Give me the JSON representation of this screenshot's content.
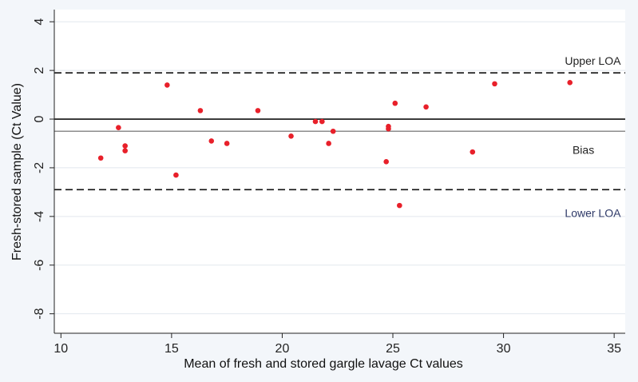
{
  "chart_data": {
    "type": "scatter",
    "xlabel": "Mean of fresh and stored gargle lavage Ct values",
    "ylabel": "Fresh-stored sample (Ct Value)",
    "xlim": [
      9.7,
      35.5
    ],
    "ylim": [
      -8.8,
      4.5
    ],
    "xticks": [
      10,
      15,
      20,
      25,
      30,
      35
    ],
    "yticks": [
      4,
      2,
      0,
      -2,
      -4,
      -6,
      -8
    ],
    "grid": true,
    "point_color": "#e8202a",
    "series": [
      {
        "x": [
          11.8,
          12.6,
          12.9,
          12.9,
          14.8,
          15.2,
          16.3,
          16.8,
          17.5,
          18.9,
          20.4,
          21.5,
          21.8,
          22.1,
          22.3,
          24.7,
          24.8,
          24.8,
          25.1,
          25.3,
          26.5,
          28.6,
          29.6,
          33.0
        ],
        "y": [
          -1.6,
          -0.35,
          -1.1,
          -1.3,
          1.4,
          -2.3,
          0.35,
          -0.9,
          -1.0,
          0.35,
          -0.7,
          -0.1,
          -0.1,
          -1.0,
          -0.5,
          -1.75,
          -0.4,
          -0.3,
          0.65,
          -3.55,
          0.5,
          -1.35,
          1.45,
          1.5
        ]
      }
    ],
    "lines": [
      {
        "name": "Upper LOA",
        "y": 1.9,
        "style": "dashed",
        "color": "#111111"
      },
      {
        "name": "zero",
        "y": 0,
        "style": "solid",
        "color": "#111111"
      },
      {
        "name": "Bias",
        "y": -0.5,
        "style": "solid",
        "color": "#8c8c8c"
      },
      {
        "name": "Lower LOA",
        "y": -2.9,
        "style": "dashed",
        "color": "#111111"
      }
    ],
    "annotations": [
      {
        "text": "Upper LOA",
        "x": 35.3,
        "y": 2.35,
        "color": "#222222"
      },
      {
        "text": "Bias",
        "x": 34.1,
        "y": -1.3,
        "color": "#222222"
      },
      {
        "text": "Lower LOA",
        "x": 35.3,
        "y": -3.9,
        "color": "#2f3a68"
      }
    ]
  }
}
